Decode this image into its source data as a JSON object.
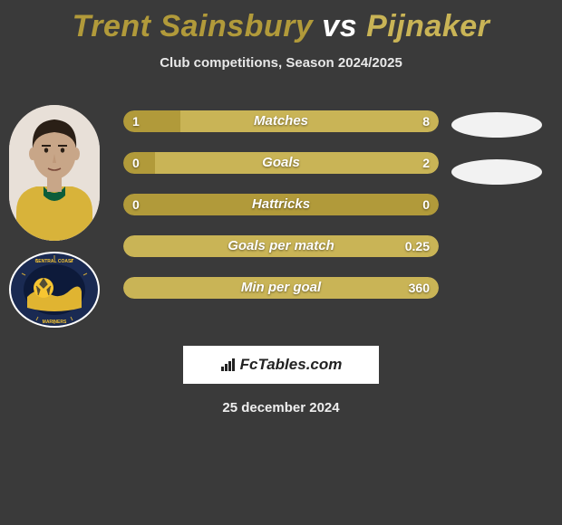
{
  "title_player1": "Trent Sainsbury",
  "title_vs": "vs",
  "title_player2": "Pijnaker",
  "subtitle": "Club competitions, Season 2024/2025",
  "colors": {
    "background": "#3a3a3a",
    "title_p1": "#b19a3a",
    "title_vs": "#ffffff",
    "title_p2": "#c9b456",
    "bar_left": "#b19a3a",
    "bar_right": "#c9b456",
    "watermark_bg": "#ffffff",
    "text": "#ffffff"
  },
  "typography": {
    "title_fontsize": 34,
    "title_weight": 900,
    "subtitle_fontsize": 15,
    "bar_label_fontsize": 15,
    "bar_value_fontsize": 14,
    "date_fontsize": 15
  },
  "bars": [
    {
      "label": "Matches",
      "left": "1",
      "right": "8",
      "left_pct": 18,
      "right_pct": 82,
      "split": true
    },
    {
      "label": "Goals",
      "left": "0",
      "right": "2",
      "left_pct": 10,
      "right_pct": 90,
      "split": true
    },
    {
      "label": "Hattricks",
      "left": "0",
      "right": "0",
      "left_pct": 100,
      "right_pct": 0,
      "split": false
    },
    {
      "label": "Goals per match",
      "left": "",
      "right": "0.25",
      "left_pct": 0,
      "right_pct": 100,
      "split": false,
      "full_color": "right"
    },
    {
      "label": "Min per goal",
      "left": "",
      "right": "360",
      "left_pct": 0,
      "right_pct": 100,
      "split": false,
      "full_color": "right"
    }
  ],
  "right_ovals_count": 2,
  "watermark_text": "FcTables.com",
  "date": "25 december 2024",
  "player_photo": {
    "skin": "#c8a688",
    "hair": "#2a1f16",
    "jersey_body": "#d8b33a",
    "jersey_collar": "#0c5d3a",
    "bg": "#e8e0d8"
  },
  "club_badge": {
    "outer_ring": "#1a2a52",
    "inner_bg": "#0d1a3a",
    "ball": "#f7c531",
    "wave": "#f7c531",
    "text_color": "#f7c531",
    "ring_text": "CENTRAL COAST  MARINERS"
  }
}
